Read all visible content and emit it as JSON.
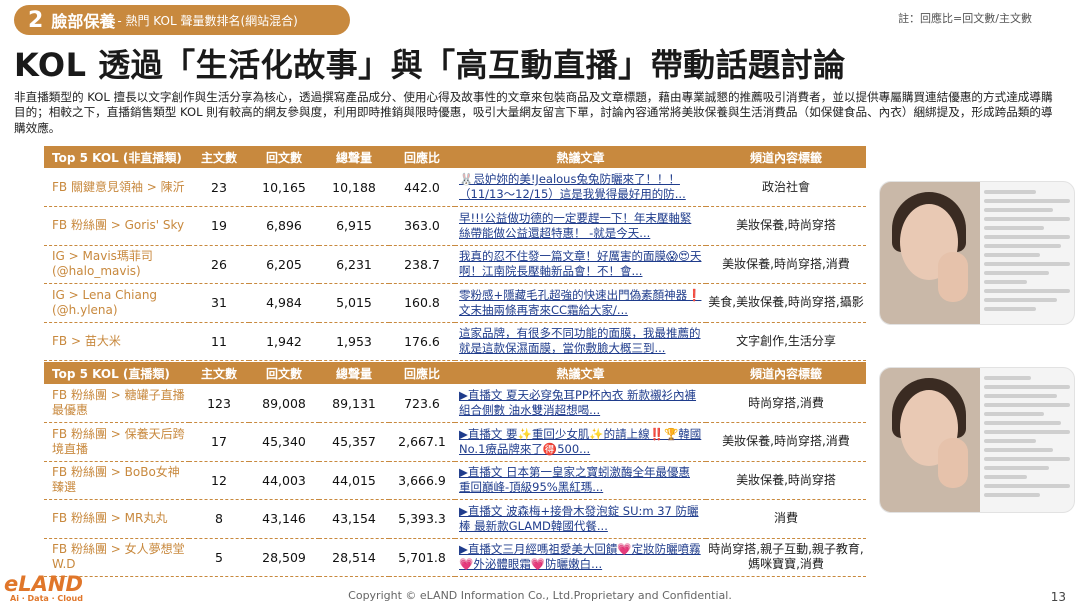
{
  "section": {
    "number": "2",
    "name": "臉部保養",
    "subtitle": "- 熱門 KOL 聲量數排名(網站混合)"
  },
  "note": "註：回應比=回文數/主文數",
  "title": "KOL 透過「生活化故事」與「高互動直播」帶動話題討論",
  "description": "非直播類型的 KOL 擅長以文字創作與生活分享為核心，透過撰寫產品成分、使用心得及故事性的文章來包裝商品及文章標題，藉由專業誠懇的推薦吸引消費者，並以提供專屬購買連結優惠的方式達成導購目的；相較之下，直播銷售類型 KOL 則有較高的網友參與度，利用即時推銷與限時優惠，吸引大量網友留言下單，討論內容通常將美妝保養與生活消費品（如保健食品、內衣）綑綁提及，形成跨品類的導購效應。",
  "table1": {
    "headers": [
      "Top 5 KOL (非直播類)",
      "主文數",
      "回文數",
      "總聲量",
      "回應比",
      "熱議文章",
      "頻道內容標籤"
    ],
    "rows": [
      {
        "kol": "FB 關鍵意見領袖 > 陳沂",
        "main": "23",
        "reply": "10,165",
        "total": "10,188",
        "ratio": "442.0",
        "article": "🐰忌妒妳的美!Jealous兔兔防曬來了！！！（11/13～12/15）這是我覺得最好用的防...",
        "tag": "政治社會"
      },
      {
        "kol": "FB 粉絲團 > Goris' Sky",
        "main": "19",
        "reply": "6,896",
        "total": "6,915",
        "ratio": "363.0",
        "article": "早!!!公益做功德的一定要趕一下！年末壓軸緊絲帶能做公益還超特惠！ -就是今天...",
        "tag": "美妝保養,時尚穿搭"
      },
      {
        "kol": "IG > Mavis瑪菲司 (@halo_mavis)",
        "main": "26",
        "reply": "6,205",
        "total": "6,231",
        "ratio": "238.7",
        "article": "我真的忍不住發一篇文章！好厲害的面膜😱😍天啊！江南院長壓軸新品會！不！會...",
        "tag": "美妝保養,時尚穿搭,消費"
      },
      {
        "kol": "IG > Lena Chiang (@h.ylena)",
        "main": "31",
        "reply": "4,984",
        "total": "5,015",
        "ratio": "160.8",
        "article": "零粉感+隱藏毛孔超強的快速出門偽素顏神器❗文末抽兩條再寄來CC霜給大家/...",
        "tag": "美食,美妝保養,時尚穿搭,攝影"
      },
      {
        "kol": "FB > 苗大米",
        "main": "11",
        "reply": "1,942",
        "total": "1,953",
        "ratio": "176.6",
        "article": "這家品牌，有很多不同功能的面膜，我最推薦的就是這款保濕面膜，當你敷臉大概三到...",
        "tag": "文字創作,生活分享"
      }
    ]
  },
  "table2": {
    "headers": [
      "Top 5 KOL (直播類)",
      "主文數",
      "回文數",
      "總聲量",
      "回應比",
      "熱議文章",
      "頻道內容標籤"
    ],
    "rows": [
      {
        "kol": "FB 粉絲團 > 糖罐子直播最優惠",
        "main": "123",
        "reply": "89,008",
        "total": "89,131",
        "ratio": "723.6",
        "article": "▶直播文 夏天必穿兔耳PP杯內衣 新款襯衫內褲組合側數 油水雙消超想喝...",
        "tag": "時尚穿搭,消費"
      },
      {
        "kol": "FB 粉絲團 > 保養天后跨境直播",
        "main": "17",
        "reply": "45,340",
        "total": "45,357",
        "ratio": "2,667.1",
        "article": "▶直播文 要✨重回少女肌✨的請上線‼️🏆韓國No.1療品牌來了🉐500...",
        "tag": "美妝保養,時尚穿搭,消費"
      },
      {
        "kol": "FB 粉絲團 > BoBo女神臻選",
        "main": "12",
        "reply": "44,003",
        "total": "44,015",
        "ratio": "3,666.9",
        "article": "▶直播文 日本第一皇家之寶蚓激酶全年最優惠 重回巔峰-頂級95%黑紅瑪...",
        "tag": "美妝保養,時尚穿搭"
      },
      {
        "kol": "FB 粉絲團 > MR丸丸",
        "main": "8",
        "reply": "43,146",
        "total": "43,154",
        "ratio": "5,393.3",
        "article": "▶直播文 波森梅+接骨木發泡錠 SU:m 37 防曬棒 最新款GLAMD韓國代餐...",
        "tag": "消費"
      },
      {
        "kol": "FB 粉絲團 > 女人夢想堂 W.D",
        "main": "5",
        "reply": "28,509",
        "total": "28,514",
        "ratio": "5,701.8",
        "article": "▶直播文三月經嗎祖愛美大回饋💗定妝防曬噴霧💗外泌體眼霜💗防曬嫩白...",
        "tag": "時尚穿搭,親子互動,親子教育,媽咪寶寶,消費"
      }
    ]
  },
  "logo": {
    "brand": "eLAND",
    "tagline": "Ai · Data · Cloud"
  },
  "footer": {
    "copyright": "Copyright © eLAND Information Co., Ltd.Proprietary and Confidential.",
    "page": "13"
  },
  "colors": {
    "accent": "#c8893e",
    "link": "#1f3c8c",
    "logo": "#e0762a"
  }
}
